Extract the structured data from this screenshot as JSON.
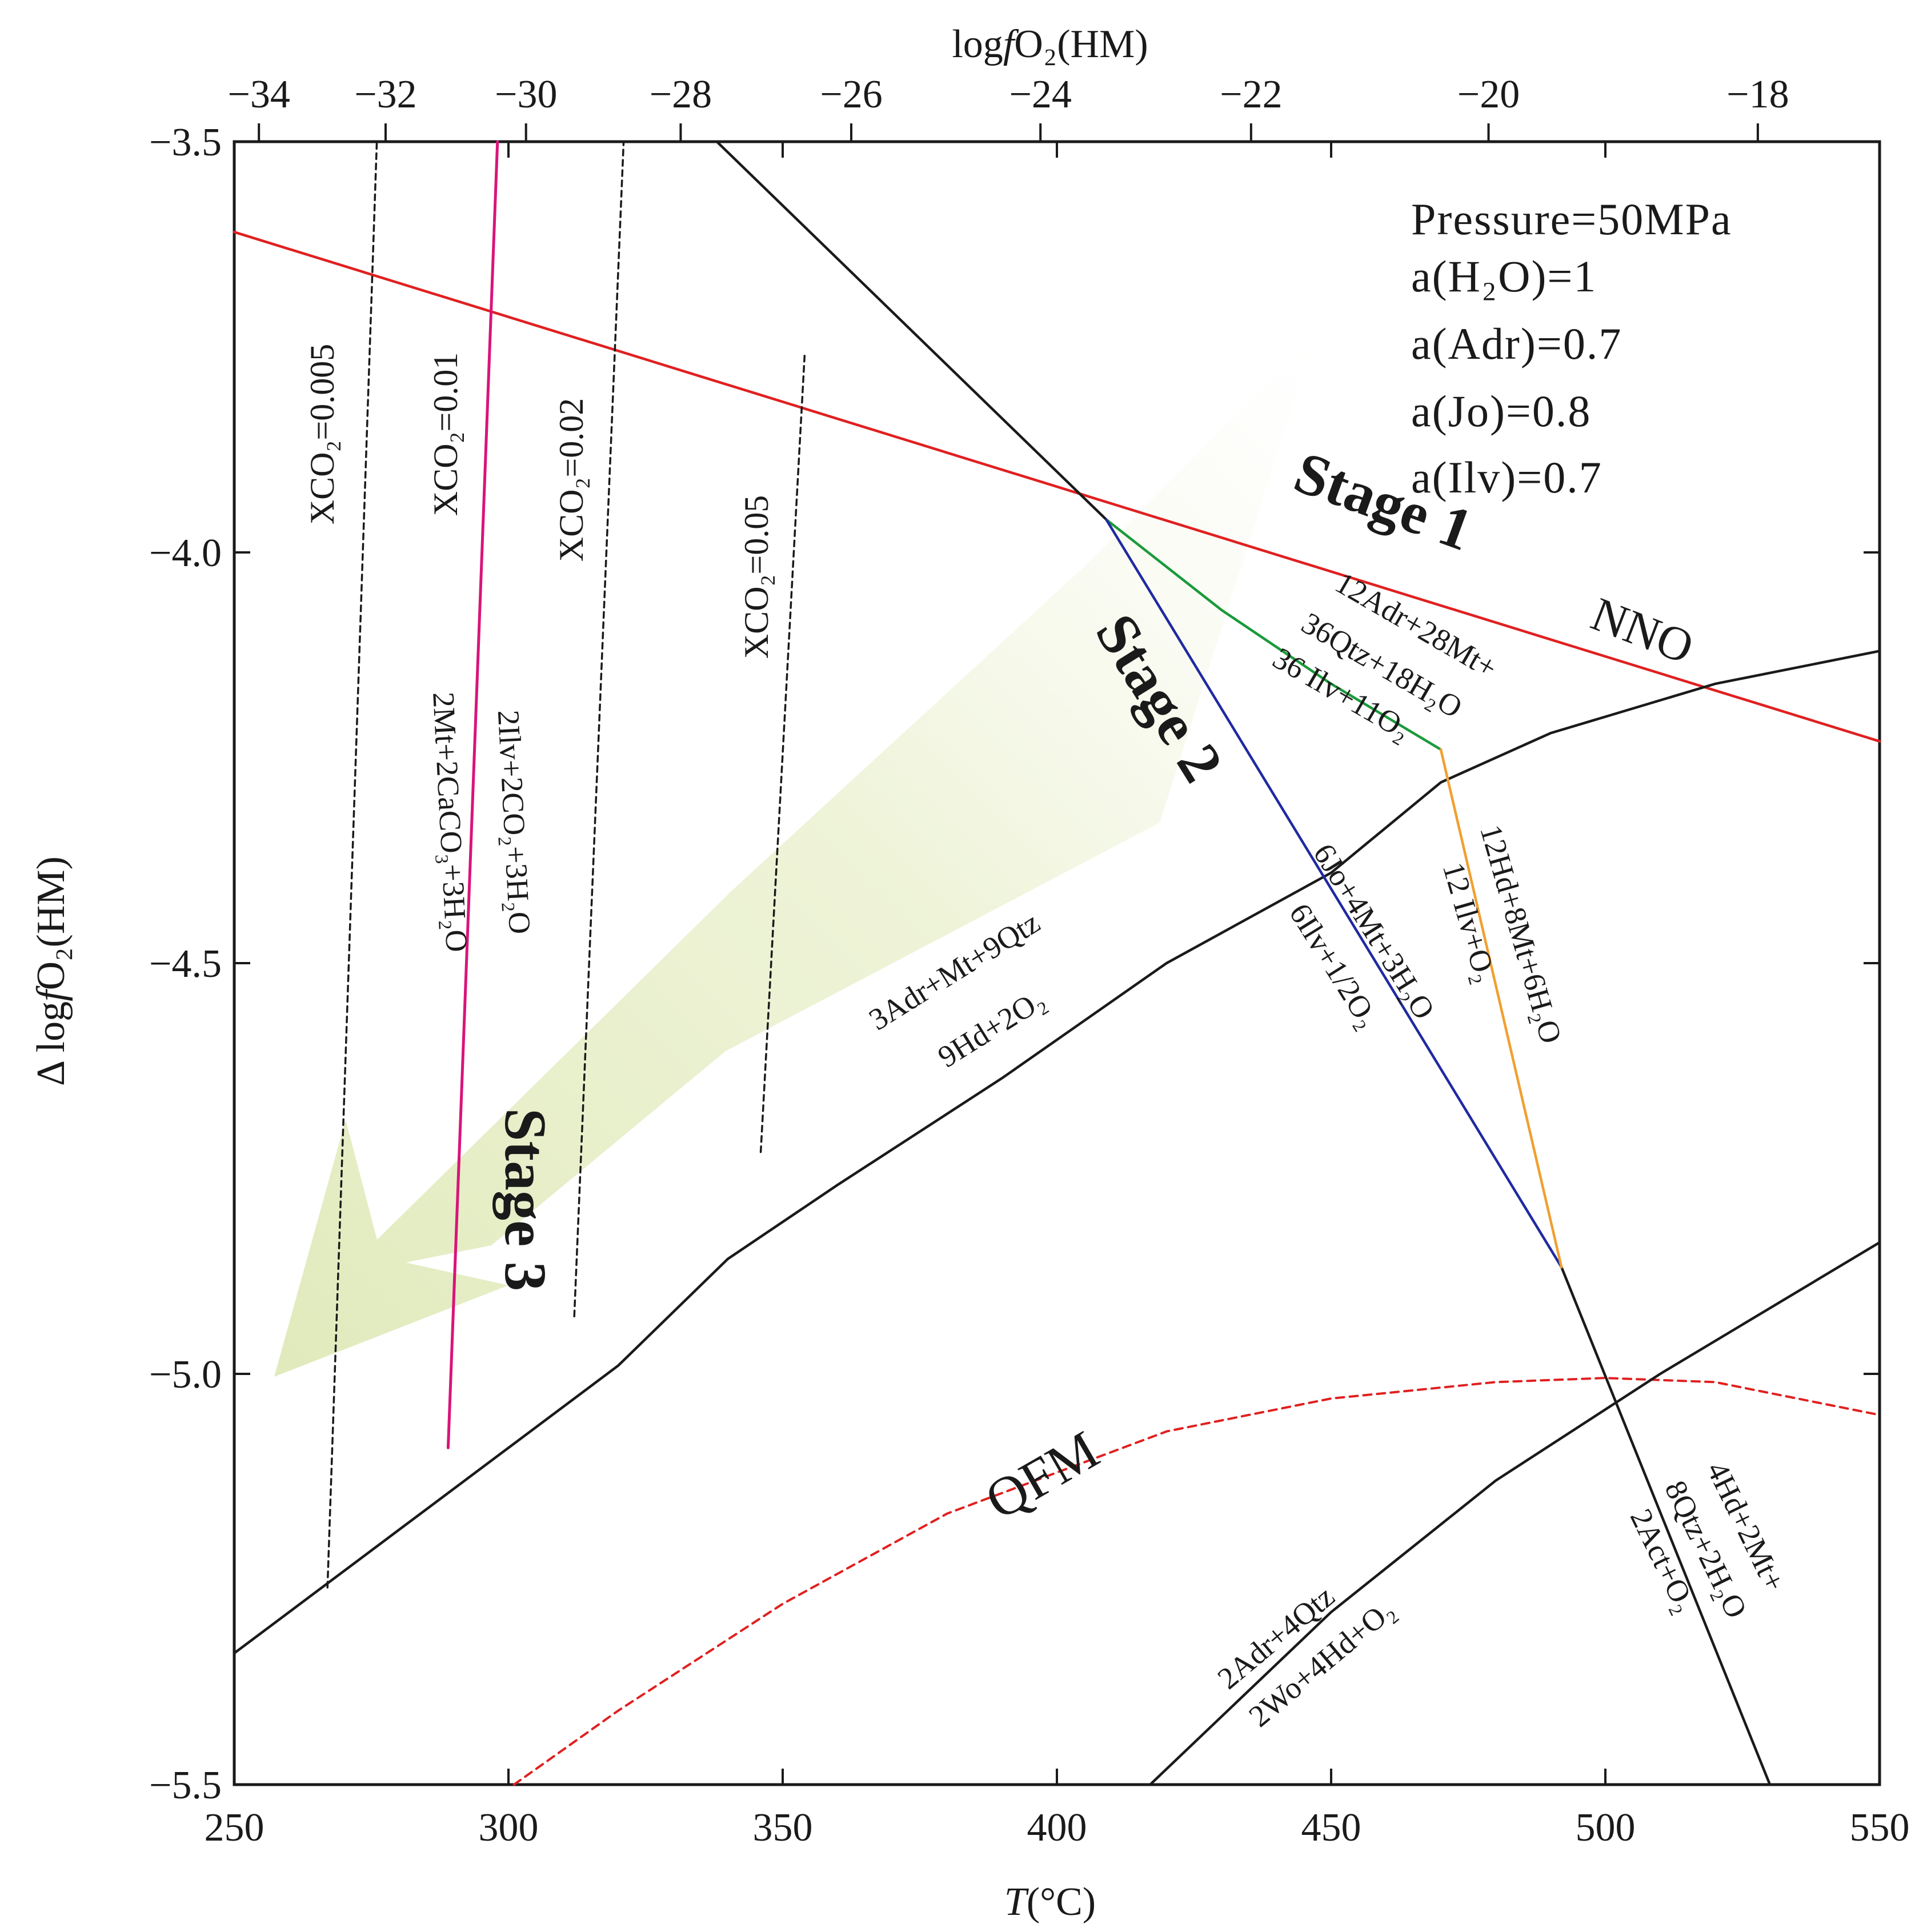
{
  "chart_data": {
    "type": "line",
    "subtype": "phase-diagram",
    "xlabel_italic": "T",
    "xlabel": "(°C)",
    "ylabel_prefix": "Δ log",
    "ylabel_italic": "f",
    "ylabel_suffix": "O₂(HM)",
    "top_xlabel_prefix": "log",
    "top_xlabel_italic": "f",
    "top_xlabel_suffix": "O₂(HM)",
    "xlim": [
      250,
      550
    ],
    "ylim": [
      -5.5,
      -3.5
    ],
    "x_ticks": [
      250,
      300,
      350,
      400,
      450,
      500,
      550
    ],
    "x_tick_labels": [
      "250",
      "300",
      "350",
      "400",
      "450",
      "500",
      "550"
    ],
    "y_ticks": [
      -3.5,
      -4.0,
      -4.5,
      -5.0,
      -5.5
    ],
    "y_tick_labels": [
      "−3.5",
      "−4.0",
      "−4.5",
      "−5.0",
      "−5.5"
    ],
    "top_ticks": [
      {
        "label": "−34",
        "T": 254.5
      },
      {
        "label": "−32",
        "T": 277.6
      },
      {
        "label": "−30",
        "T": 303.2
      },
      {
        "label": "−28",
        "T": 331.4
      },
      {
        "label": "−26",
        "T": 362.5
      },
      {
        "label": "−24",
        "T": 397.0
      },
      {
        "label": "−22",
        "T": 435.4
      },
      {
        "label": "−20",
        "T": 478.7
      },
      {
        "label": "−18",
        "T": 527.8
      }
    ],
    "parameters": [
      "Pressure=50MPa",
      "a(H₂O)=1",
      "a(Adr)=0.7",
      "a(Jo)=0.8",
      "a(Ilv)=0.7"
    ],
    "series": [
      {
        "name": "NNO",
        "color": "#e02020",
        "style": "solid",
        "x": [
          250,
          550
        ],
        "y": [
          -3.61,
          -4.23
        ]
      },
      {
        "name": "QFM",
        "color": "#e02020",
        "style": "dashed",
        "x": [
          301,
          320,
          350,
          380,
          420,
          450,
          480,
          500,
          520,
          550
        ],
        "y": [
          -5.5,
          -5.41,
          -5.28,
          -5.17,
          -5.07,
          -5.03,
          -5.01,
          -5.005,
          -5.01,
          -5.05
        ]
      },
      {
        "name": "3Adr+Mt+9Qtz = 9Hd+2O2",
        "color": "#1a1a1a",
        "style": "solid",
        "x": [
          250,
          280,
          300,
          320,
          340,
          360,
          390,
          420,
          450,
          470,
          490,
          520,
          550
        ],
        "y": [
          -5.34,
          -5.19,
          -5.09,
          -4.99,
          -4.86,
          -4.77,
          -4.64,
          -4.5,
          -4.39,
          -4.28,
          -4.22,
          -4.16,
          -4.12
        ]
      },
      {
        "name": "2Adr+4Qtz = 2Wo+4Hd+O2",
        "color": "#1a1a1a",
        "style": "solid",
        "x": [
          417,
          450,
          480,
          510,
          550
        ],
        "y": [
          -5.5,
          -5.29,
          -5.13,
          -5.0,
          -4.84
        ]
      },
      {
        "name": "4Hd+2Mt+8Qtz+2H2O = 2Act+O2",
        "color": "#1a1a1a",
        "style": "solid",
        "x": [
          338,
          409,
          409,
          492,
          492,
          530
        ],
        "y": [
          -3.5,
          -3.96,
          null,
          -4.87,
          -4.87,
          -5.5
        ]
      },
      {
        "name": "12Adr+28Mt+36Qtz+18H2O = 36Ilv+11O2",
        "color": "#1a9a3a",
        "style": "solid",
        "x": [
          409,
          430,
          450,
          470
        ],
        "y": [
          -3.96,
          -4.07,
          -4.16,
          -4.24
        ]
      },
      {
        "name": "6Jo+4Mt+3H2O = 6Ilv+1/2O2",
        "color": "#1f2aa0",
        "style": "solid",
        "x": [
          409,
          492
        ],
        "y": [
          -3.96,
          -4.87
        ]
      },
      {
        "name": "12Hd+8Mt+6H2O = 12Ilv+O2",
        "color": "#f0a030",
        "style": "solid",
        "x": [
          470,
          492
        ],
        "y": [
          -4.24,
          -4.87
        ]
      },
      {
        "name": "2Ilv+2CO2+3H2O = 2Mt+2CaCO3+3H2O",
        "color": "#d9147a",
        "style": "solid",
        "x": [
          289,
          298
        ],
        "y": [
          -5.09,
          -3.5
        ]
      },
      {
        "name": "XCO2=0.005",
        "color": "#1a1a1a",
        "style": "dotted",
        "x": [
          267,
          276
        ],
        "y": [
          -5.26,
          -3.5
        ]
      },
      {
        "name": "XCO2=0.02",
        "color": "#1a1a1a",
        "style": "dotted",
        "x": [
          312,
          321
        ],
        "y": [
          -4.93,
          -3.5
        ]
      },
      {
        "name": "XCO2=0.05",
        "color": "#1a1a1a",
        "style": "dotted",
        "x": [
          346,
          354
        ],
        "y": [
          -4.73,
          -3.76
        ]
      }
    ],
    "xco2_labels": [
      "XCO₂=0.005",
      "XCO₂=0.01",
      "XCO₂=0.02",
      "XCO₂=0.05"
    ],
    "stage_labels": [
      "Stage  1",
      "Stage  2",
      "Stage  3"
    ],
    "buffer_labels": [
      "NNO",
      "QFM"
    ],
    "reaction_labels": {
      "ilv_co2_top": "2Ilv+2CO₂+3H₂O",
      "ilv_co2_bottom": "2Mt+2CaCO₃+3H₂O",
      "adr_mt_top": "3Adr+Mt+9Qtz",
      "adr_mt_bottom": "9Hd+2O₂",
      "adr_ilv_1": "12Adr+28Mt+",
      "adr_ilv_2": "36Qtz+18H₂O",
      "adr_ilv_3": "36 Ilv+11O₂",
      "jo_top": "6Jo+4Mt+3H₂O",
      "jo_bottom": "6Ilv+1/2O₂",
      "hd_ilv_top": "12Hd+8Mt+6H₂O",
      "hd_ilv_bottom": "12 Ilv+O₂",
      "adr_wo_top": "2Adr+4Qtz",
      "adr_wo_bottom": "2Wo+4Hd+O₂",
      "act_1": "4Hd+2Mt+",
      "act_2": "8Qtz+2H₂O",
      "act_3": "2Act+O₂"
    },
    "arrow": {
      "color": "#e3ecc0",
      "direction": "from upper right (Stage 1) to lower left (Stage 3)"
    }
  }
}
